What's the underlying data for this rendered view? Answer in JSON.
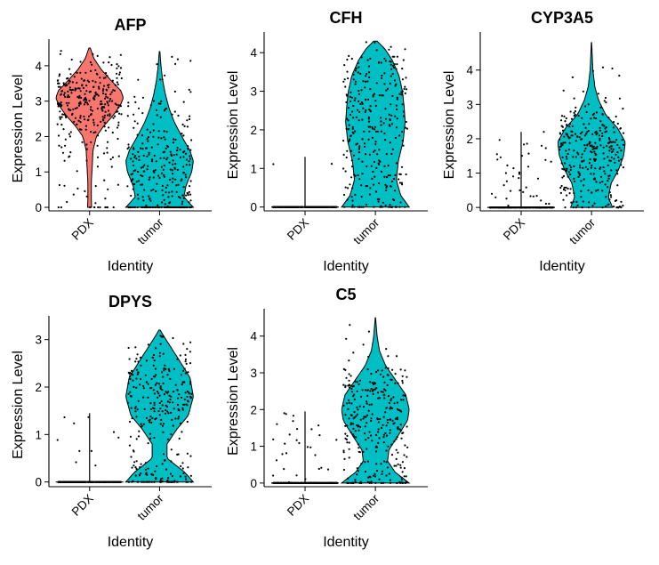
{
  "figure": {
    "ylabel": "Expression Level",
    "xlabel": "Identity",
    "categories": [
      "PDX",
      "tumor"
    ],
    "colors": {
      "PDX": "#F8766D",
      "tumor": "#00BFC4",
      "outline": "#000000",
      "points": "#000000"
    }
  },
  "chart_data": [
    {
      "type": "violin",
      "title": "AFP",
      "categories": [
        "PDX",
        "tumor"
      ],
      "ylim": [
        -0.1,
        4.55
      ],
      "yticks": [
        0,
        1,
        2,
        3,
        4
      ],
      "series": [
        {
          "name": "PDX",
          "min": 0,
          "max": 4.5,
          "zero_fraction": 0.04,
          "density_profile": [
            [
              0,
              0.06
            ],
            [
              0.3,
              0.05
            ],
            [
              0.7,
              0.05
            ],
            [
              1.2,
              0.08
            ],
            [
              1.6,
              0.1
            ],
            [
              2.0,
              0.2
            ],
            [
              2.3,
              0.42
            ],
            [
              2.6,
              0.7
            ],
            [
              2.9,
              0.92
            ],
            [
              3.1,
              1.0
            ],
            [
              3.3,
              0.92
            ],
            [
              3.6,
              0.62
            ],
            [
              3.9,
              0.34
            ],
            [
              4.2,
              0.13
            ],
            [
              4.5,
              0.02
            ]
          ]
        },
        {
          "name": "tumor",
          "min": 0,
          "max": 4.4,
          "zero_fraction": 0.2,
          "density_profile": [
            [
              0,
              1.0
            ],
            [
              0.1,
              0.9
            ],
            [
              0.3,
              0.72
            ],
            [
              0.6,
              0.78
            ],
            [
              1.0,
              0.95
            ],
            [
              1.3,
              1.0
            ],
            [
              1.6,
              0.9
            ],
            [
              2.0,
              0.66
            ],
            [
              2.4,
              0.44
            ],
            [
              2.8,
              0.28
            ],
            [
              3.2,
              0.17
            ],
            [
              3.6,
              0.09
            ],
            [
              4.0,
              0.04
            ],
            [
              4.4,
              0.01
            ]
          ]
        }
      ]
    },
    {
      "type": "violin",
      "title": "CFH",
      "categories": [
        "PDX",
        "tumor"
      ],
      "ylim": [
        -0.1,
        4.35
      ],
      "yticks": [
        0,
        1,
        2,
        3,
        4
      ],
      "series": [
        {
          "name": "PDX",
          "min": 0,
          "max": 1.3,
          "zero_fraction": 0.99,
          "density_profile": []
        },
        {
          "name": "tumor",
          "min": 0,
          "max": 4.3,
          "zero_fraction": 0.05,
          "density_profile": [
            [
              0,
              1.0
            ],
            [
              0.3,
              0.75
            ],
            [
              0.7,
              0.62
            ],
            [
              1.2,
              0.68
            ],
            [
              1.7,
              0.82
            ],
            [
              2.2,
              0.88
            ],
            [
              2.6,
              0.85
            ],
            [
              3.0,
              0.8
            ],
            [
              3.4,
              0.7
            ],
            [
              3.8,
              0.5
            ],
            [
              4.1,
              0.28
            ],
            [
              4.3,
              0.05
            ]
          ]
        }
      ]
    },
    {
      "type": "violin",
      "title": "CYP3A5",
      "categories": [
        "PDX",
        "tumor"
      ],
      "ylim": [
        -0.1,
        4.9
      ],
      "yticks": [
        0,
        1,
        2,
        3,
        4
      ],
      "series": [
        {
          "name": "PDX",
          "min": 0,
          "max": 2.2,
          "zero_fraction": 0.88,
          "density_profile": []
        },
        {
          "name": "tumor",
          "min": 0,
          "max": 4.8,
          "zero_fraction": 0.04,
          "density_profile": [
            [
              0,
              0.62
            ],
            [
              0.3,
              0.5
            ],
            [
              0.7,
              0.58
            ],
            [
              1.1,
              0.8
            ],
            [
              1.5,
              0.95
            ],
            [
              1.9,
              1.0
            ],
            [
              2.3,
              0.78
            ],
            [
              2.7,
              0.42
            ],
            [
              3.1,
              0.22
            ],
            [
              3.5,
              0.1
            ],
            [
              4.0,
              0.04
            ],
            [
              4.8,
              0.005
            ]
          ]
        }
      ]
    },
    {
      "type": "violin",
      "title": "DPYS",
      "categories": [
        "PDX",
        "tumor"
      ],
      "ylim": [
        -0.1,
        3.35
      ],
      "yticks": [
        0,
        1,
        2,
        3
      ],
      "series": [
        {
          "name": "PDX",
          "min": 0,
          "max": 1.45,
          "zero_fraction": 0.97,
          "density_profile": []
        },
        {
          "name": "tumor",
          "min": 0,
          "max": 3.2,
          "zero_fraction": 0.1,
          "density_profile": [
            [
              0,
              1.0
            ],
            [
              0.2,
              0.75
            ],
            [
              0.5,
              0.22
            ],
            [
              0.8,
              0.22
            ],
            [
              1.1,
              0.5
            ],
            [
              1.4,
              0.85
            ],
            [
              1.8,
              1.0
            ],
            [
              2.2,
              0.9
            ],
            [
              2.6,
              0.55
            ],
            [
              2.9,
              0.28
            ],
            [
              3.1,
              0.1
            ],
            [
              3.2,
              0.02
            ]
          ]
        }
      ]
    },
    {
      "type": "violin",
      "title": "C5",
      "categories": [
        "PDX",
        "tumor"
      ],
      "ylim": [
        -0.1,
        4.55
      ],
      "yticks": [
        0,
        1,
        2,
        3,
        4
      ],
      "series": [
        {
          "name": "PDX",
          "min": 0,
          "max": 1.95,
          "zero_fraction": 0.9,
          "density_profile": []
        },
        {
          "name": "tumor",
          "min": 0,
          "max": 4.5,
          "zero_fraction": 0.04,
          "density_profile": [
            [
              0,
              1.0
            ],
            [
              0.3,
              0.58
            ],
            [
              0.6,
              0.36
            ],
            [
              0.9,
              0.4
            ],
            [
              1.3,
              0.68
            ],
            [
              1.7,
              0.95
            ],
            [
              2.0,
              1.0
            ],
            [
              2.4,
              0.9
            ],
            [
              2.8,
              0.6
            ],
            [
              3.2,
              0.3
            ],
            [
              3.6,
              0.12
            ],
            [
              4.0,
              0.05
            ],
            [
              4.5,
              0.005
            ]
          ]
        }
      ]
    }
  ]
}
